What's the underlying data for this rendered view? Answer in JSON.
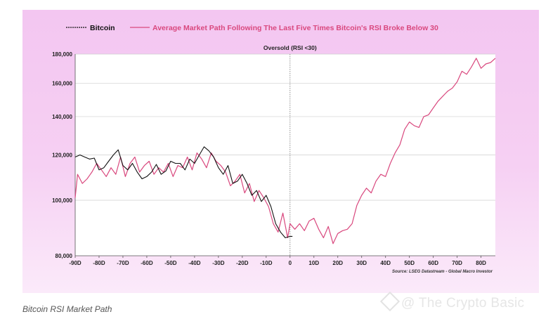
{
  "chart_data": {
    "type": "line",
    "title": "Average Market Path Following The Last Five Times Bitcoin's RSI Broke Below 30",
    "annotation": "Oversold (RSI <30)",
    "source": "Source: LSEG Datastream - Global Macro Investor",
    "xlabel": "",
    "ylabel": "",
    "xlim": [
      -90,
      86
    ],
    "ylim": [
      80000,
      180000
    ],
    "y_scale": "log",
    "x_ticks": [
      -90,
      -80,
      -70,
      -60,
      -50,
      -40,
      -30,
      -20,
      -10,
      0,
      10,
      20,
      30,
      40,
      50,
      60,
      70,
      80
    ],
    "x_tick_labels": [
      "-90D",
      "-80D",
      "-70D",
      "-60D",
      "-50D",
      "-40D",
      "-30D",
      "-20D",
      "-10D",
      "0",
      "10D",
      "20D",
      "30D",
      "40D",
      "50D",
      "60D",
      "70D",
      "80D"
    ],
    "y_ticks": [
      80000,
      100000,
      120000,
      140000,
      160000,
      180000
    ],
    "y_tick_labels": [
      "80,000",
      "100,000",
      "120,000",
      "140,000",
      "160,000",
      "180,000"
    ],
    "legend_position": "top",
    "series": [
      {
        "name": "Bitcoin",
        "color": "#111111",
        "x": [
          -90,
          -88,
          -86,
          -84,
          -82,
          -80,
          -78,
          -76,
          -74,
          -72,
          -70,
          -68,
          -66,
          -64,
          -62,
          -60,
          -58,
          -56,
          -54,
          -52,
          -50,
          -48,
          -46,
          -44,
          -42,
          -40,
          -38,
          -36,
          -34,
          -32,
          -30,
          -28,
          -26,
          -24,
          -22,
          -20,
          -18,
          -16,
          -14,
          -12,
          -10,
          -8,
          -6,
          -4,
          -2,
          0,
          1
        ],
        "values": [
          119000,
          120000,
          119000,
          118000,
          118500,
          113000,
          114000,
          117000,
          120000,
          122500,
          115000,
          113000,
          116000,
          112000,
          109000,
          110000,
          112000,
          115500,
          111000,
          112500,
          117000,
          116000,
          116000,
          113000,
          118000,
          116000,
          120000,
          124000,
          122000,
          119000,
          114000,
          111000,
          115000,
          107000,
          108000,
          111000,
          107000,
          102000,
          104000,
          99500,
          102000,
          97500,
          91000,
          88000,
          86000,
          86500,
          86500
        ]
      },
      {
        "name": "Average Market Path Following The Last Five Times Bitcoin's RSI Broke Below 30",
        "color": "#d9487e",
        "x": [
          -90,
          -89,
          -87,
          -85,
          -83,
          -81,
          -79,
          -77,
          -75,
          -73,
          -71,
          -69,
          -67,
          -65,
          -63,
          -61,
          -59,
          -57,
          -55,
          -53,
          -51,
          -49,
          -47,
          -45,
          -43,
          -41,
          -39,
          -37,
          -35,
          -33,
          -31,
          -29,
          -27,
          -25,
          -23,
          -21,
          -19,
          -17,
          -15,
          -13,
          -11,
          -9,
          -7,
          -5,
          -3,
          -1,
          0,
          2,
          4,
          6,
          8,
          10,
          12,
          14,
          16,
          18,
          20,
          22,
          24,
          26,
          28,
          30,
          32,
          34,
          36,
          38,
          40,
          42,
          44,
          46,
          48,
          50,
          52,
          54,
          56,
          58,
          60,
          62,
          64,
          66,
          68,
          70,
          72,
          74,
          76,
          78,
          80,
          82,
          84,
          86
        ],
        "values": [
          101000,
          111000,
          107000,
          109000,
          112000,
          116000,
          113000,
          110000,
          114000,
          111000,
          119000,
          110000,
          116000,
          119000,
          112000,
          115000,
          117000,
          111000,
          114000,
          112000,
          116000,
          110000,
          115000,
          114000,
          119000,
          113000,
          121000,
          118000,
          114000,
          121000,
          117000,
          115000,
          112000,
          106000,
          108000,
          111000,
          103000,
          107000,
          99500,
          104000,
          101000,
          97500,
          91000,
          88000,
          95000,
          86000,
          91000,
          89000,
          91000,
          88500,
          92000,
          93000,
          89000,
          86000,
          90000,
          84000,
          87500,
          88500,
          89000,
          91000,
          98000,
          102000,
          105000,
          103000,
          108000,
          111000,
          110000,
          116000,
          121000,
          125000,
          133000,
          137000,
          135000,
          134000,
          140000,
          141000,
          145000,
          149000,
          152000,
          155000,
          157000,
          161000,
          168000,
          166000,
          171000,
          177000,
          170000,
          173000,
          174000,
          177000
        ]
      }
    ]
  },
  "caption": "Bitcoin RSI Market Path",
  "watermark": "@ The Crypto Basic"
}
